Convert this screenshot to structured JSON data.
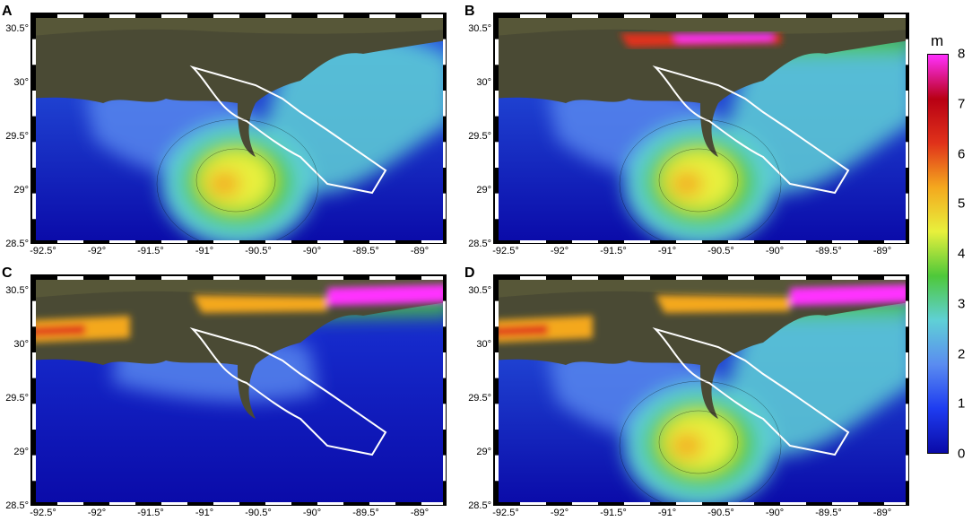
{
  "panels": [
    {
      "label": "A"
    },
    {
      "label": "B"
    },
    {
      "label": "C"
    },
    {
      "label": "D"
    }
  ],
  "x_tick_labels": [
    "-92.5°",
    "-92°",
    "-91.5°",
    "-91°",
    "-90.5°",
    "-90°",
    "-89.5°",
    "-89°"
  ],
  "y_tick_labels": [
    "30.5°",
    "30°",
    "29.5°",
    "29°",
    "28.5°"
  ],
  "colorbar": {
    "unit": "m",
    "ticks": [
      "8",
      "7",
      "6",
      "5",
      "4",
      "3",
      "2",
      "1",
      "0"
    ],
    "range": [
      0,
      8
    ],
    "colors": [
      "#0a0aa8",
      "#1e3cf0",
      "#5a8cf0",
      "#5fd0d6",
      "#4ec83a",
      "#e8f03c",
      "#f4a81e",
      "#e0321a",
      "#b80014",
      "#ff30ff"
    ]
  },
  "map_colors": {
    "land": "#4a4a34",
    "deep_water": "#1428c8",
    "levee_line": "#ffffff"
  },
  "chart_data": {
    "type": "heatmap",
    "title": "",
    "xlabel": "",
    "ylabel": "",
    "xlim": [
      -92.6,
      -88.8
    ],
    "ylim": [
      28.45,
      30.7
    ],
    "colorbar_label": "m",
    "colorbar_range": [
      0,
      8
    ]
  }
}
